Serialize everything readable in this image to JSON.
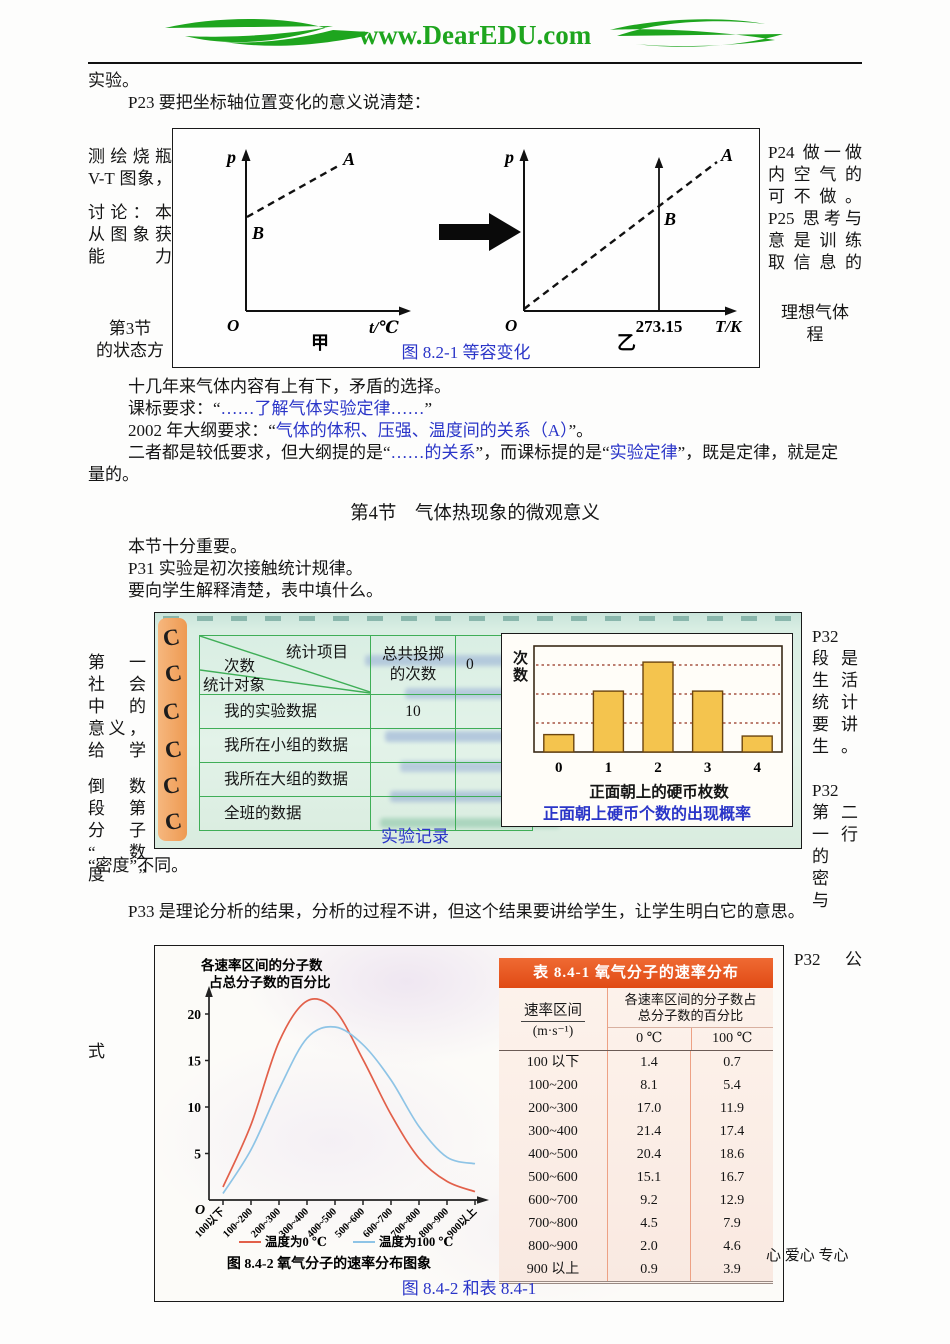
{
  "header": {
    "logo_text": "www.DearEDU.com"
  },
  "intro": {
    "line1": "实验。",
    "line2": "P23 要把坐标轴位置变化的意义说清楚："
  },
  "figure1": {
    "caption": "图 8.2-1 等容变化",
    "left_margin_group1": [
      "测绘烧瓶",
      "V-T 图象，"
    ],
    "left_margin_group2": [
      "讨论：本",
      "从图象获",
      "能力"
    ],
    "left_margin_group3": [
      "第3节",
      "的状态方"
    ],
    "right_margin_group1": [
      "P24 做一做",
      "内空气的",
      "可不做。",
      "P25 思考与",
      "意是训练",
      "取信息的"
    ],
    "right_margin_group2": [
      "理想气体",
      "程"
    ],
    "graph_jia": {
      "y_axis": "p",
      "x_axis": "t/℃",
      "origin": "O",
      "point_a": "A",
      "point_b": "B",
      "label": "甲"
    },
    "graph_yi": {
      "y_axis": "p",
      "x_axis": "T/K",
      "origin": "O",
      "point_a": "A",
      "point_b": "B",
      "x_tick": "273.15",
      "label": "乙"
    }
  },
  "para1": {
    "line1": [
      {
        "t": "十几年来气体内容有上有下，矛盾的选择。"
      }
    ],
    "line2": [
      {
        "t": "课标要求：“"
      },
      {
        "t": "……了解气体实验定律……",
        "c": 1
      },
      {
        "t": "”"
      }
    ],
    "line3": [
      {
        "t": "2002 年大纲要求：“"
      },
      {
        "t": "气体的体积、压强、温度间的关系（A）",
        "c": 1
      },
      {
        "t": "”。"
      }
    ],
    "line4": [
      {
        "t": "二者都是较低要求，但大纲提的是“"
      },
      {
        "t": "……的关系",
        "c": 1
      },
      {
        "t": "”，而课标提的是“"
      },
      {
        "t": "实验定律",
        "c": 1
      },
      {
        "t": "”，既是定律，就是定"
      }
    ],
    "line5": [
      {
        "t": "量的。"
      }
    ]
  },
  "section4": {
    "title": "第4节　气体热现象的微观意义",
    "lines": [
      "本节十分重要。",
      "P31 实验是初次接触统计规律。",
      "要向学生解释清楚，表中填什么。"
    ]
  },
  "figure2": {
    "caption": "实验记录",
    "left_margin_group1": [
      "第一",
      "社会",
      "中的",
      "意义，",
      "给学"
    ],
    "left_margin_group2": [
      "倒数",
      "段第",
      "分子",
      "“数",
      "度”"
    ],
    "right_margin_group1": [
      "P32",
      "段是",
      "生活",
      "统计",
      "要讲",
      "生。"
    ],
    "right_margin_group2": [
      "P32",
      "第二",
      "一行",
      "的",
      "密",
      "与"
    ],
    "stats_table": {
      "diag_top_right": "统计项目",
      "diag_mid": "次数",
      "diag_bottom": "统计对象",
      "col2_header_line1": "总共投掷",
      "col2_header_line2": "的次数",
      "col3_header": "0",
      "rows": [
        [
          "我的实验数据",
          "10"
        ],
        [
          "我所在小组的数据",
          ""
        ],
        [
          "我所在大组的数据",
          ""
        ],
        [
          "全班的数据",
          ""
        ]
      ]
    },
    "bar_chart_ylabel": "次数",
    "bar_chart_xlabel": "正面朝上的硬币枚数",
    "bar_chart_caption": "正面朝上硬币个数的出现概率"
  },
  "after_figure2": "“密度”不同。",
  "p33": "P33 是理论分析的结果，分析的过程不讲，但这个结果要讲给学生，让学生明白它的意思。",
  "figure3": {
    "caption": "图 8.4-2 和表 8.4-1",
    "left_margin": "式",
    "right_margin": "P32　公",
    "table": {
      "title": "表 8.4-1 氧气分子的速率分布",
      "col1_header_line1": "速率区间",
      "col1_header_line2": "(m·s⁻¹)",
      "col23_header_line1": "各速率区间的分子数占",
      "col23_header_line2": "总分子数的百分比",
      "sub_headers": [
        "0 ℃",
        "100 ℃"
      ],
      "rows": [
        [
          "100 以下",
          "1.4",
          "0.7"
        ],
        [
          "100~200",
          "8.1",
          "5.4"
        ],
        [
          "200~300",
          "17.0",
          "11.9"
        ],
        [
          "300~400",
          "21.4",
          "17.4"
        ],
        [
          "400~500",
          "20.4",
          "18.6"
        ],
        [
          "500~600",
          "15.1",
          "16.7"
        ],
        [
          "600~700",
          "9.2",
          "12.9"
        ],
        [
          "700~800",
          "4.5",
          "7.9"
        ],
        [
          "800~900",
          "2.0",
          "4.6"
        ],
        [
          "900 以上",
          "0.9",
          "3.9"
        ]
      ]
    }
  },
  "page": {
    "footer": "心 爱心 专心"
  },
  "colors": {
    "accent_blue": "#2a35c8",
    "logo_green": "#1ea51e",
    "bar_fill": "#f4c44e",
    "banner_red": "#e8511c",
    "curve_red": "#e2604a",
    "curve_blue": "#8ec4e6",
    "table_green": "#3fae57"
  },
  "chart_data": [
    {
      "type": "bar",
      "title": "正面朝上硬币个数的出现概率",
      "xlabel": "正面朝上的硬币枚数",
      "ylabel": "次数",
      "categories": [
        "0",
        "1",
        "2",
        "3",
        "4"
      ],
      "values": [
        0.6,
        2.1,
        3.1,
        2.1,
        0.55
      ],
      "y_gridlines": [
        1,
        2,
        3
      ],
      "note": "y axis has no numeric labels; values estimated in units of the dashed gridlines",
      "grid": true,
      "legend_position": "none"
    },
    {
      "type": "line",
      "title": "图 8.4-2 氧气分子的速率分布图象",
      "xlabel": "",
      "ylabel": "各速率区间的分子数占总分子数的百分比",
      "ylabel_lines": [
        "各速率区间的分子数",
        "占总分子数的百分比"
      ],
      "origin_label": "O",
      "categories": [
        "100以下",
        "100~200",
        "200~300",
        "300~400",
        "400~500",
        "500~600",
        "600~700",
        "700~800",
        "800~900",
        "900以上"
      ],
      "yticks": [
        5,
        10,
        15,
        20
      ],
      "ylim": [
        0,
        22
      ],
      "grid": false,
      "legend_position": "bottom",
      "series": [
        {
          "name": "温度为0 ℃",
          "color": "#e2604a",
          "values": [
            1.4,
            8.1,
            17.0,
            21.4,
            20.4,
            15.1,
            9.2,
            4.5,
            2.0,
            0.9
          ]
        },
        {
          "name": "温度为100 ℃",
          "color": "#8ec4e6",
          "values": [
            0.7,
            5.4,
            11.9,
            17.4,
            18.6,
            16.7,
            12.9,
            7.9,
            4.6,
            3.9
          ]
        }
      ]
    }
  ]
}
